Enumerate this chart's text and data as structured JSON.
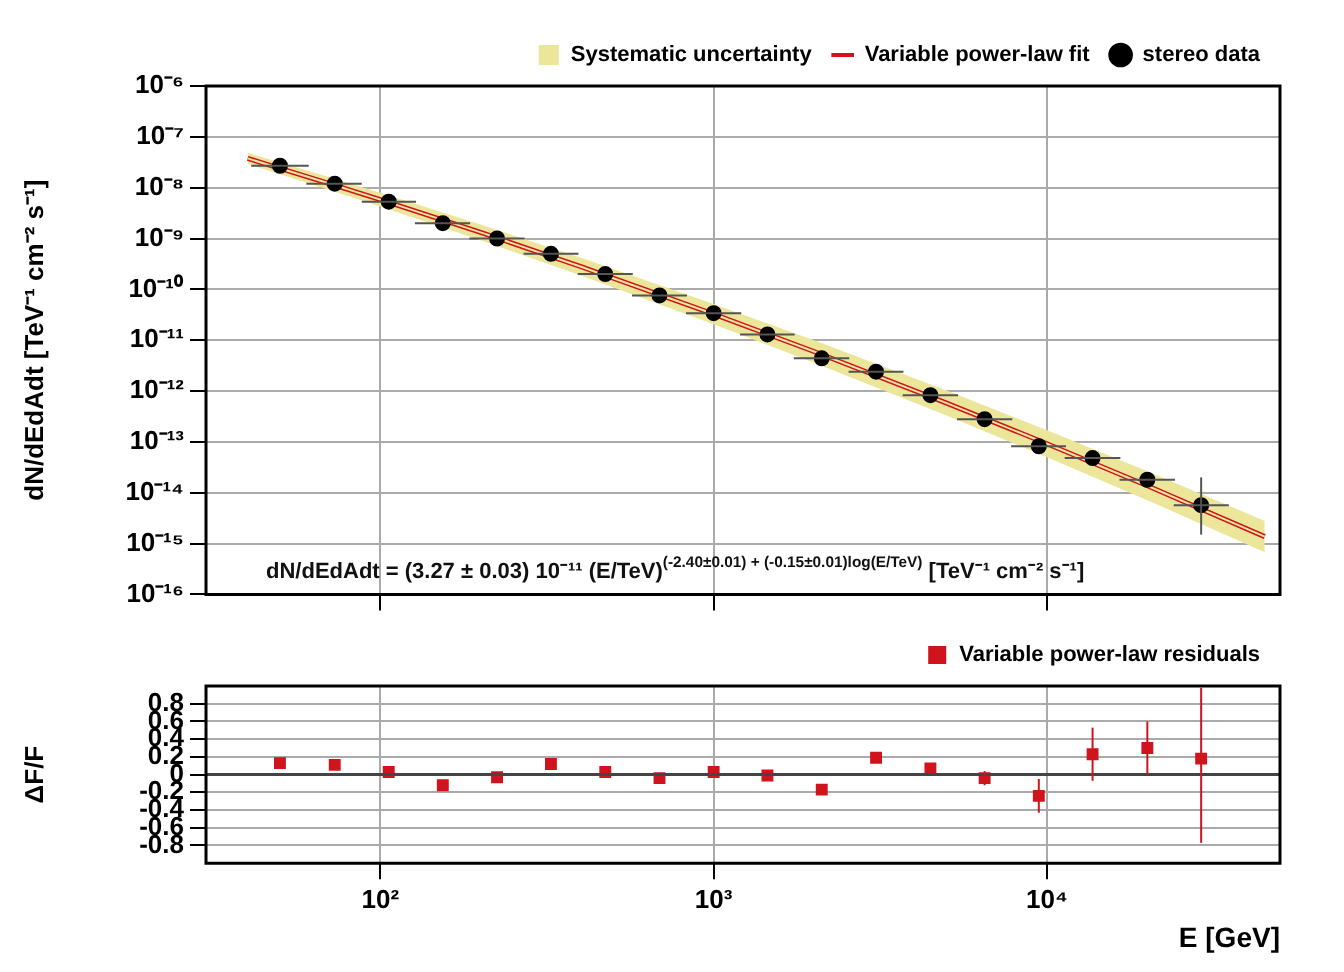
{
  "chart_data": [
    {
      "type": "scatter",
      "ylabel": "dN/dEdAdt [TeV⁻¹ cm⁻² s⁻¹]",
      "annotations": [
        "dN/dEdAdt = (3.27 ± 0.03) 10⁻¹¹ (E/TeV)$^{(-2.40±0.01) + (-0.15±0.01)log(E/TeV)}$ [TeV⁻¹ cm⁻² s⁻¹]"
      ],
      "log": "xy",
      "xlim": [
        30,
        50000
      ],
      "xticks": [
        {
          "value": 100,
          "label": null
        },
        {
          "value": 1000,
          "label": null
        },
        {
          "value": 10000,
          "label": null
        }
      ],
      "ylim": [
        1e-16,
        1e-06
      ],
      "yticks": [
        {
          "value": 1e-16,
          "label": "10⁻¹⁶"
        },
        {
          "value": 1e-15,
          "label": "10⁻¹⁵"
        },
        {
          "value": 1e-14,
          "label": "10⁻¹⁴"
        },
        {
          "value": 1e-13,
          "label": "10⁻¹³"
        },
        {
          "value": 1e-12,
          "label": "10⁻¹²"
        },
        {
          "value": 1e-11,
          "label": "10⁻¹¹"
        },
        {
          "value": 1e-10,
          "label": "10⁻¹⁰"
        },
        {
          "value": 1e-09,
          "label": "10⁻⁹"
        },
        {
          "value": 1e-08,
          "label": "10⁻⁸"
        },
        {
          "value": 1e-07,
          "label": "10⁻⁷"
        },
        {
          "value": 1e-06,
          "label": "10⁻⁶"
        }
      ],
      "tick_labels": "y",
      "grid": true,
      "legend": "top right",
      "series": [
        {
          "name": "Systematic uncertainty",
          "type": "line",
          "color": "#ebe69a",
          "x": [
            40,
            70,
            100,
            200,
            400,
            1000,
            2000,
            5000,
            10000,
            20000,
            45000
          ],
          "values": [
            3.77e-08,
            1.22e-08,
            5.81e-09,
            1.32e-09,
            2.79e-10,
            3.27e-11,
            6e-12,
            5.8e-13,
            9.2e-14,
            1.37e-14,
            1.37e-15
          ],
          "lower": [
            2.93e-08,
            9.12e-09,
            4.25e-09,
            9.2e-10,
            1.87e-10,
            2.06e-11,
            3.62e-12,
            3.29e-13,
            4.99e-14,
            7.13e-15,
            6.75e-16
          ],
          "upper": [
            4.86e-08,
            1.63e-08,
            7.95e-09,
            1.88e-09,
            4.18e-10,
            5.18e-11,
            9.97e-12,
            1.02e-12,
            1.7e-13,
            2.65e-14,
            2.79e-15
          ]
        },
        {
          "name": "Variable power-law fit",
          "type": "line",
          "color": "#d0141e",
          "line_style": "solid",
          "x": [
            40,
            70,
            100,
            200,
            400,
            1000,
            2000,
            5000,
            10000,
            20000,
            45000
          ],
          "values": [
            3.77e-08,
            1.22e-08,
            5.81e-09,
            1.32e-09,
            2.79e-10,
            3.27e-11,
            6e-12,
            5.8e-13,
            9.2e-14,
            1.37e-14,
            1.37e-15
          ]
        },
        {
          "name": "stereo data",
          "type": "scatter",
          "color": "#000000",
          "marker": "circle",
          "x": [
            50,
            73,
            106,
            154,
            224,
            325,
            473,
            688,
            1000,
            1450,
            2110,
            3070,
            4470,
            6500,
            9450,
            13700,
            20000,
            29000
          ],
          "values": [
            2.7e-08,
            1.2e-08,
            5.3e-09,
            2e-09,
            1e-09,
            5e-10,
            2e-10,
            7.6e-11,
            3.4e-11,
            1.3e-11,
            4.4e-12,
            2.4e-12,
            8.3e-13,
            2.8e-13,
            8.2e-14,
            4.8e-14,
            1.8e-14,
            5.7e-15
          ],
          "errors": [
            null,
            null,
            null,
            null,
            null,
            null,
            null,
            null,
            null,
            null,
            null,
            null,
            null,
            null,
            null,
            null,
            null,
            [
              1.5e-15,
              2e-14
            ]
          ],
          "xerrors": [
            [
              41,
              61
            ],
            [
              60,
              88
            ],
            [
              88,
              128
            ],
            [
              127,
              186
            ],
            [
              185,
              271
            ],
            [
              269,
              393
            ],
            [
              391,
              572
            ],
            [
              569,
              832
            ],
            [
              826,
              1210
            ],
            [
              1200,
              1750
            ],
            [
              1740,
              2550
            ],
            [
              2540,
              3710
            ],
            [
              3690,
              5410
            ],
            [
              5370,
              7870
            ],
            [
              7810,
              11400
            ],
            [
              11300,
              16600
            ],
            [
              16500,
              24200
            ],
            [
              24000,
              35100
            ]
          ]
        }
      ]
    },
    {
      "type": "scatter",
      "xlabel": "E [GeV]",
      "ylabel": "ΔF/F",
      "log": "x",
      "xlim": [
        30,
        50000
      ],
      "xticks": [
        {
          "value": 100,
          "label": "10²"
        },
        {
          "value": 1000,
          "label": "10³"
        },
        {
          "value": 10000,
          "label": "10⁴"
        }
      ],
      "ylim": [
        -1,
        1
      ],
      "yticks": [
        -0.8,
        -0.6,
        -0.4,
        -0.2,
        0,
        0.2,
        0.4,
        0.6,
        0.8
      ],
      "grid": true,
      "legend": "top right",
      "ref_lines": [
        {
          "axis": "y",
          "value": 0,
          "color": "#444444"
        }
      ],
      "series": [
        {
          "name": "Variable power-law residuals",
          "type": "scatter",
          "color": "#d0141e",
          "marker": "square",
          "x": [
            50,
            73,
            106,
            154,
            224,
            325,
            473,
            688,
            1000,
            1450,
            2110,
            3070,
            4470,
            6500,
            9450,
            13700,
            20000,
            29000
          ],
          "values": [
            0.13,
            0.11,
            0.03,
            -0.12,
            -0.03,
            0.12,
            0.03,
            -0.04,
            0.03,
            -0.01,
            -0.17,
            0.19,
            0.07,
            -0.04,
            -0.24,
            0.23,
            0.3,
            0.18
          ],
          "errors": [
            0.06,
            null,
            null,
            null,
            null,
            null,
            null,
            null,
            null,
            null,
            null,
            0.06,
            0.06,
            0.08,
            0.19,
            0.3,
            0.3,
            [
              -0.77,
              0.98
            ]
          ]
        }
      ]
    }
  ]
}
